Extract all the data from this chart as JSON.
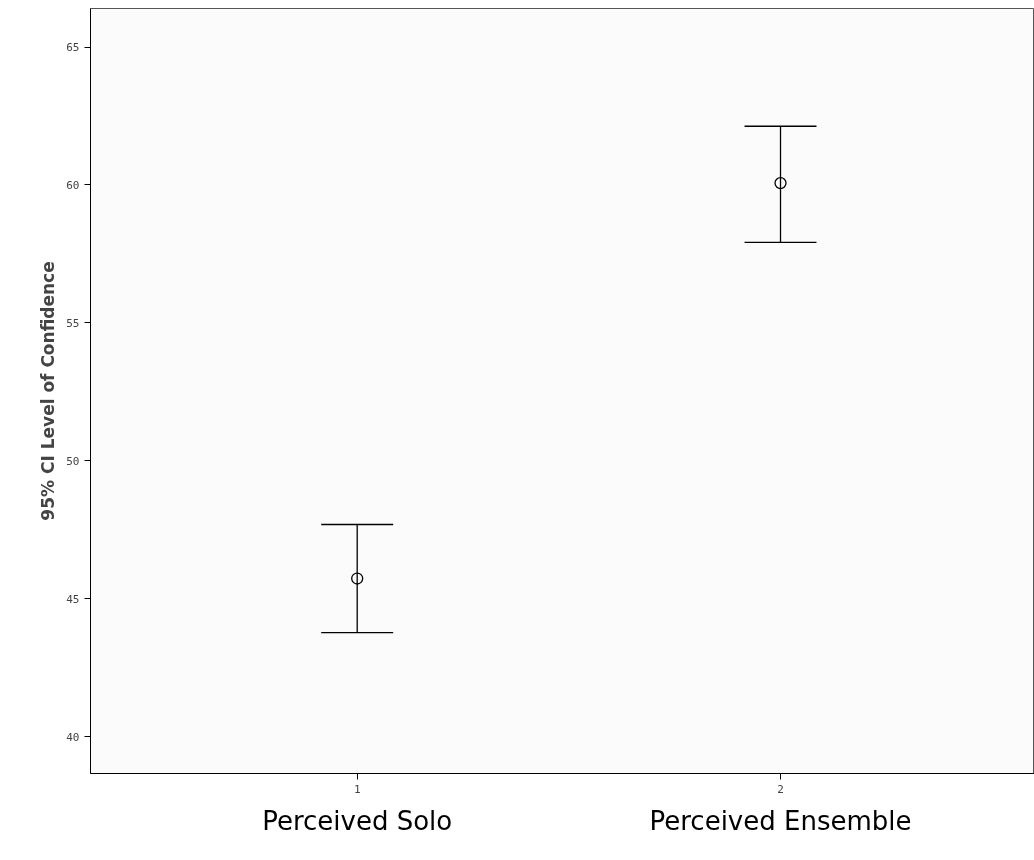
{
  "chart_data": {
    "type": "scatter",
    "ylabel": "95% CI Level of Confidence",
    "x": [
      1,
      2
    ],
    "values": [
      45.73,
      60.07
    ],
    "errors": [
      [
        43.77,
        47.69
      ],
      [
        57.92,
        62.13
      ]
    ],
    "color": "#000000",
    "marker": "circle",
    "xlim": [
      0.37,
      2.6
    ],
    "xticks": [
      1,
      2
    ],
    "ylim": [
      38.66,
      66.4
    ],
    "yticks": [
      40,
      45,
      50,
      55,
      60,
      65
    ],
    "grid": false,
    "annotations": [
      "Perceived Solo",
      "Perceived Ensemble"
    ]
  }
}
